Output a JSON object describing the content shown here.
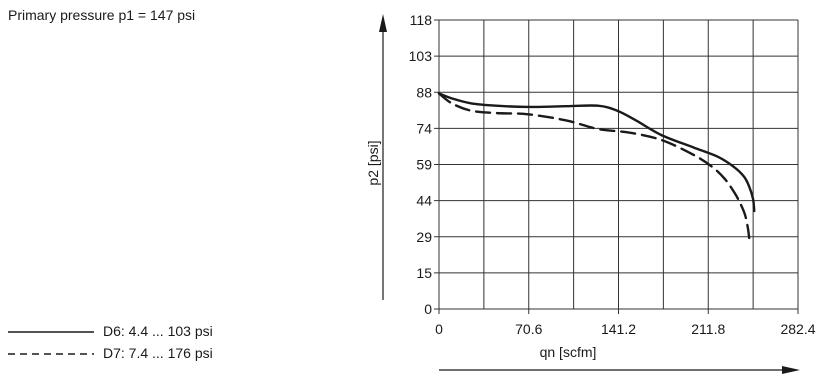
{
  "caption": "Primary pressure p1 = 147 psi",
  "chart_data": {
    "type": "line",
    "xlabel": "qn [scfm]",
    "ylabel": "p2 [psi]",
    "xlim": [
      0,
      282.4
    ],
    "ylim": [
      0,
      118
    ],
    "xticks": [
      "0",
      "70.6",
      "141.2",
      "211.8",
      "282.4"
    ],
    "yticks": [
      "0",
      "15",
      "29",
      "44",
      "59",
      "74",
      "88",
      "103",
      "118"
    ],
    "grid": true,
    "legend_placement": "bottom-left",
    "series": [
      {
        "name": "D6: 4.4 ... 103 psi",
        "style": "solid",
        "color": "#1a1a1a",
        "x": [
          0,
          10,
          25,
          45,
          70,
          100,
          125,
          140,
          155,
          175,
          200,
          220,
          232,
          240,
          244,
          247,
          248
        ],
        "y": [
          88,
          86,
          84,
          83,
          82.5,
          82.8,
          83,
          81,
          77,
          71,
          66,
          62,
          58,
          54,
          50,
          45,
          40
        ]
      },
      {
        "name": "D7: 7.4 ... 176 psi",
        "style": "dashed",
        "color": "#1a1a1a",
        "x": [
          0,
          10,
          25,
          45,
          70,
          100,
          125,
          150,
          175,
          200,
          215,
          225,
          233,
          238,
          241,
          243,
          244
        ],
        "y": [
          88,
          84,
          81,
          80,
          79.5,
          77,
          73.5,
          72,
          69,
          63,
          58,
          53,
          47,
          42,
          38,
          33,
          29
        ]
      }
    ]
  }
}
